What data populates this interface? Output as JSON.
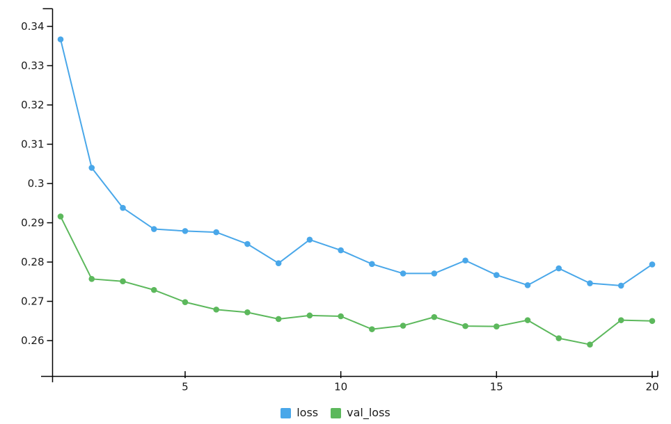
{
  "chart_data": {
    "type": "line",
    "title": "",
    "xlabel": "",
    "ylabel": "",
    "grid": false,
    "legend_position": "bottom",
    "x": [
      1,
      2,
      3,
      4,
      5,
      6,
      7,
      8,
      9,
      10,
      11,
      12,
      13,
      14,
      15,
      16,
      17,
      18,
      19,
      20
    ],
    "series": [
      {
        "name": "loss",
        "color": "#49A7E9",
        "values": [
          0.3367,
          0.304,
          0.2938,
          0.2884,
          0.2879,
          0.2876,
          0.2846,
          0.2797,
          0.2857,
          0.283,
          0.2795,
          0.2771,
          0.2771,
          0.2804,
          0.2767,
          0.2741,
          0.2784,
          0.2746,
          0.274,
          0.2794
        ]
      },
      {
        "name": "val_loss",
        "color": "#5CB85C",
        "values": [
          0.2916,
          0.2757,
          0.2751,
          0.2729,
          0.2698,
          0.2679,
          0.2672,
          0.2655,
          0.2664,
          0.2662,
          0.2629,
          0.2638,
          0.266,
          0.2637,
          0.2636,
          0.2652,
          0.2606,
          0.259,
          0.2652,
          0.265
        ]
      }
    ],
    "xlim": [
      0.7426,
      20.179
    ],
    "ylim": [
      0.25089,
      0.34451
    ],
    "x_ticks": [
      {
        "value": 5,
        "label": "5"
      },
      {
        "value": 10,
        "label": "10"
      },
      {
        "value": 15,
        "label": "15"
      },
      {
        "value": 20,
        "label": "20"
      }
    ],
    "y_ticks": [
      {
        "value": 0.34,
        "label": "0.34"
      },
      {
        "value": 0.33,
        "label": "0.33"
      },
      {
        "value": 0.32,
        "label": "0.32"
      },
      {
        "value": 0.31,
        "label": "0.31"
      },
      {
        "value": 0.3,
        "label": "0.3"
      },
      {
        "value": 0.29,
        "label": "0.29"
      },
      {
        "value": 0.28,
        "label": "0.28"
      },
      {
        "value": 0.27,
        "label": "0.27"
      },
      {
        "value": 0.26,
        "label": "0.26"
      }
    ],
    "axis_color": "#000000",
    "text_color": "#1a1a1a"
  }
}
